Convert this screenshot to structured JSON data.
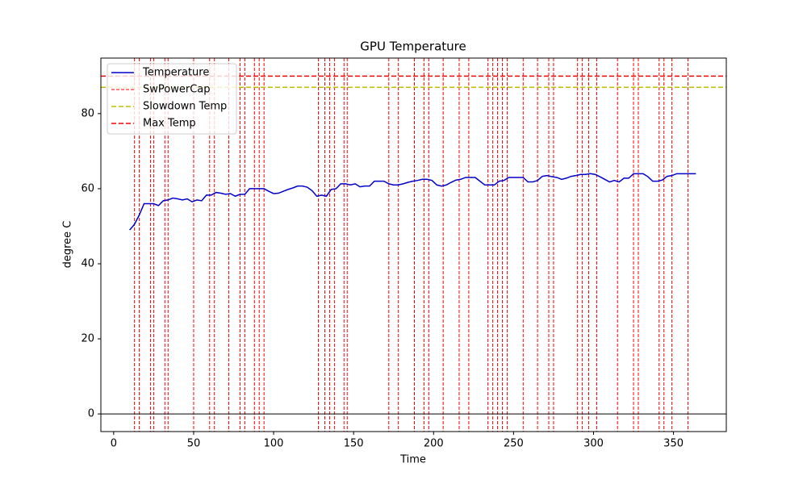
{
  "chart_data": {
    "type": "line",
    "title": "GPU Temperature",
    "x_label": "Time",
    "y_label": "degree C",
    "xlim": [
      -8,
      383
    ],
    "ylim": [
      -4.7,
      94.8
    ],
    "xticks": [
      0,
      50,
      100,
      150,
      200,
      250,
      300,
      350
    ],
    "yticks": [
      0,
      20,
      40,
      60,
      80
    ],
    "legend": "upper left",
    "x": [
      10,
      13,
      16,
      19,
      22,
      25,
      28,
      31,
      34,
      37,
      40,
      43,
      46,
      49,
      52,
      55,
      58,
      61,
      64,
      67,
      70,
      73,
      76,
      79,
      82,
      85,
      88,
      91,
      94,
      97,
      100,
      103,
      106,
      109,
      112,
      115,
      118,
      121,
      124,
      127,
      130,
      133,
      136,
      139,
      142,
      145,
      148,
      151,
      154,
      157,
      160,
      163,
      166,
      169,
      172,
      175,
      178,
      181,
      184,
      187,
      190,
      193,
      196,
      199,
      202,
      205,
      208,
      211,
      214,
      217,
      220,
      223,
      226,
      229,
      232,
      235,
      238,
      241,
      244,
      247,
      250,
      253,
      256,
      259,
      262,
      265,
      268,
      271,
      274,
      277,
      280,
      283,
      286,
      289,
      292,
      295,
      298,
      301,
      304,
      307,
      310,
      313,
      316,
      319,
      322,
      325,
      328,
      331,
      334,
      337,
      340,
      343,
      346,
      349,
      352,
      355,
      358,
      361,
      364
    ],
    "series": [
      {
        "name": "Temperature",
        "color": "#0000cc",
        "values": [
          49,
          50.5,
          53,
          56,
          56,
          56,
          55.5,
          56.8,
          57,
          57.5,
          57.3,
          57,
          57.3,
          56.5,
          57,
          56.8,
          58.3,
          58.3,
          59,
          58.8,
          58.5,
          58.7,
          58,
          58.5,
          58.5,
          60,
          60,
          60,
          60,
          59.3,
          58.7,
          58.8,
          59.3,
          59.8,
          60.2,
          60.7,
          60.7,
          60.4,
          59.5,
          58,
          58.3,
          58,
          59.8,
          60,
          61.3,
          61.3,
          61,
          61.3,
          60.5,
          60.7,
          60.7,
          62,
          62,
          62,
          61.3,
          61,
          61,
          61.3,
          61.7,
          62,
          62.2,
          62.5,
          62.5,
          62.2,
          61,
          60.7,
          61,
          61.7,
          62.3,
          62.5,
          63,
          63,
          63,
          62,
          61,
          61,
          61,
          62,
          62.2,
          63,
          63,
          63,
          63,
          61.8,
          61.8,
          62.2,
          63.3,
          63.5,
          63.2,
          63,
          62.5,
          62.8,
          63.3,
          63.5,
          63.8,
          63.8,
          64,
          63.8,
          63.2,
          62.5,
          61.8,
          62.2,
          61.8,
          62.8,
          62.8,
          64,
          64,
          64,
          63.2,
          62,
          62,
          62.3,
          63.3,
          63.5,
          64,
          64,
          64,
          64,
          64
        ]
      }
    ],
    "vlines": {
      "name": "SwPowerCap",
      "color": "#ff0000",
      "x": [
        13,
        16,
        23,
        25,
        32,
        34,
        50,
        60,
        63,
        72,
        79,
        82,
        88,
        91,
        94,
        128,
        132,
        135,
        138,
        144,
        146,
        172,
        178,
        188,
        194,
        197,
        206,
        216,
        222,
        234,
        237,
        240,
        243,
        246,
        256,
        265,
        272,
        275,
        290,
        293,
        297,
        302,
        315,
        325,
        328,
        341,
        344,
        349,
        359
      ]
    },
    "hlines": [
      {
        "name": "Slowdown Temp",
        "color": "#bfbf00",
        "value": 87
      },
      {
        "name": "Max Temp",
        "color": "#ff0000",
        "value": 90
      },
      {
        "color": "#000000",
        "value": 0
      }
    ]
  }
}
